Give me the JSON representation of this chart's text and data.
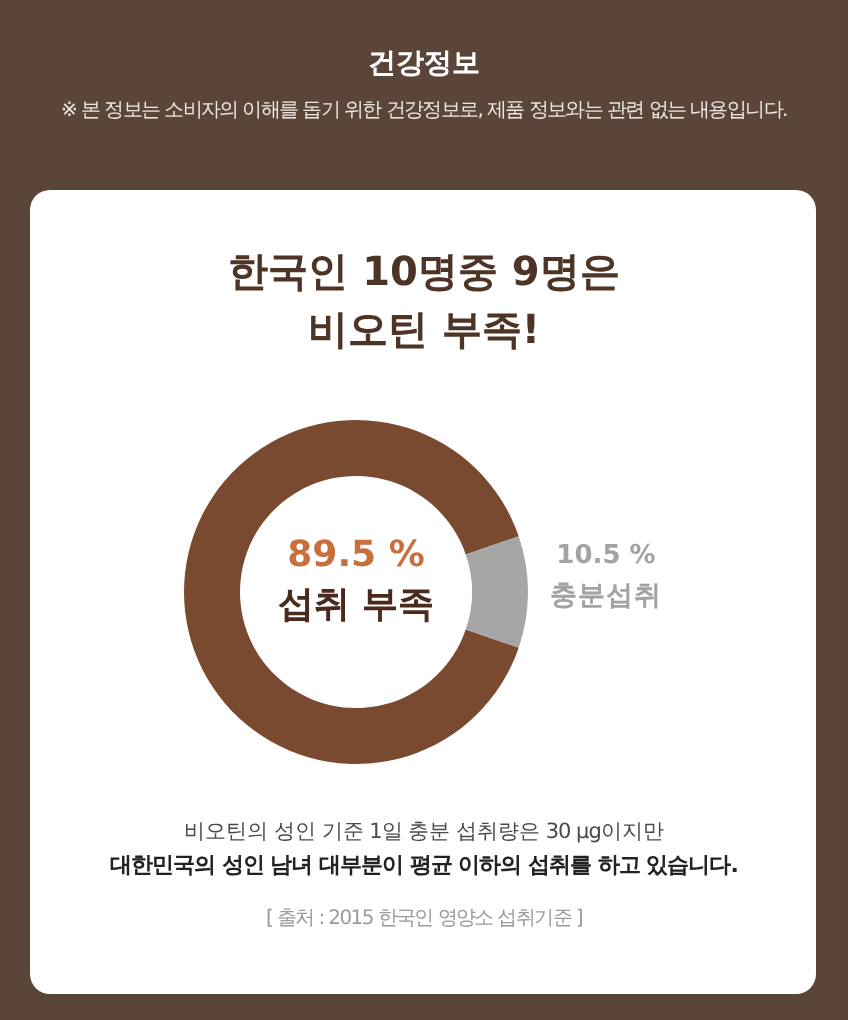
{
  "chart_data": {
    "type": "donut",
    "title": "한국인 10명중 9명은\n비오틴 부족!",
    "categories": [
      "섭취 부족",
      "충분섭취"
    ],
    "values": [
      89.5,
      10.5
    ],
    "colors": [
      "#7a4a30",
      "#a6a6a6"
    ],
    "value_labels": [
      "89.5 %",
      "10.5 %"
    ],
    "legend": false,
    "annotations": [
      "건강정보",
      "※ 본 정보는 소비자의 이해를 돕기 위한 건강정보로, 제품 정보와는 관련 없는 내용입니다.",
      "비오틴의 성인 기준 1일 충분 섭취량은 30 μg이지만",
      "대한민국의 성인 남녀 대부분이 평균 이하의 섭취를 하고 있습니다.",
      "[ 출처 : 2015 한국인 영양소 섭취기준 ]"
    ]
  }
}
